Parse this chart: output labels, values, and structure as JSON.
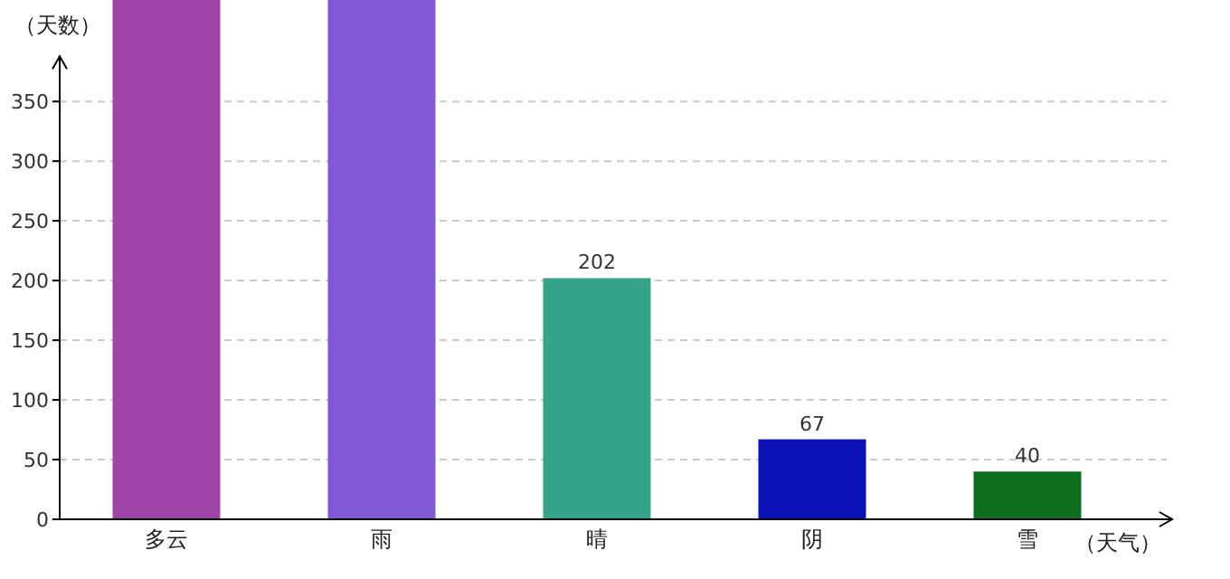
{
  "chart_data": {
    "type": "bar",
    "xlabel": "（天气）",
    "ylabel": "（天数）",
    "categories": [
      "多云",
      "雨",
      "晴",
      "阴",
      "雪"
    ],
    "values": [
      435,
      435,
      202,
      67,
      40
    ],
    "colors": [
      "#a045a8",
      "#7f59d4",
      "#34a388",
      "#0c12b8",
      "#0e6e20"
    ],
    "value_labels": [
      null,
      null,
      "202",
      "67",
      "40"
    ],
    "ylim": [
      0,
      435
    ],
    "yticks": [
      0,
      50,
      100,
      150,
      200,
      250,
      300,
      350
    ],
    "grid": "y"
  }
}
